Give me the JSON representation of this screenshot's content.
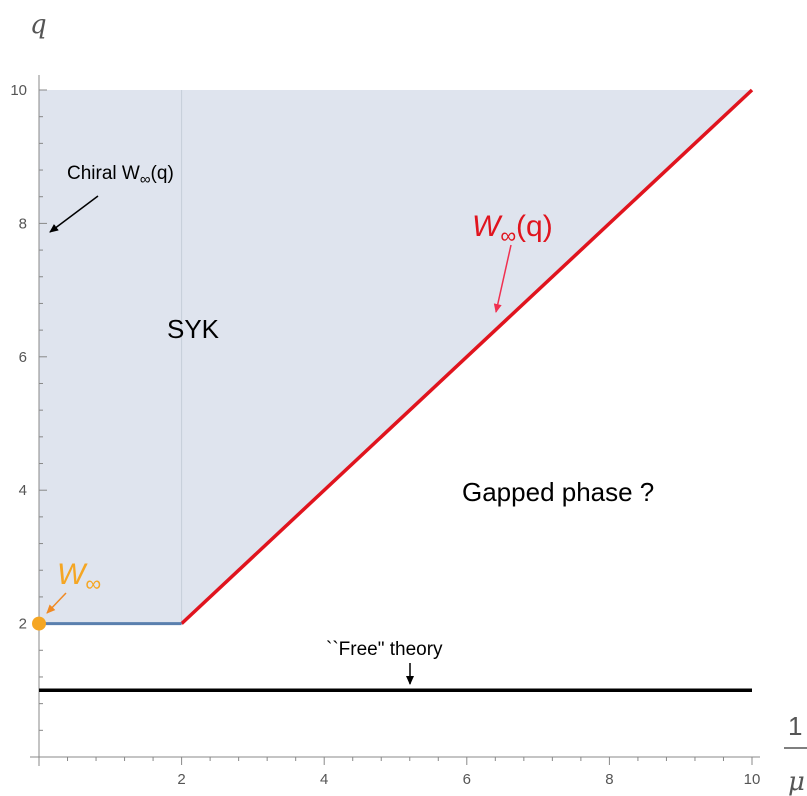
{
  "chart_data": {
    "type": "area",
    "xlabel_numerator": "1",
    "xlabel_denominator": "μ",
    "ylabel": "q",
    "xlim": [
      0,
      10
    ],
    "ylim": [
      0,
      10
    ],
    "x_ticks": [
      2,
      4,
      6,
      8,
      10
    ],
    "y_ticks": [
      2,
      4,
      6,
      8,
      10
    ],
    "x_tick_labels": [
      "2",
      "4",
      "6",
      "8",
      "10"
    ],
    "y_tick_labels": [
      "2",
      "4",
      "6",
      "8",
      "10"
    ],
    "shaded_region": {
      "label": "SYK",
      "color": "#dfe4ee",
      "vertices": [
        [
          0,
          2
        ],
        [
          2,
          2
        ],
        [
          10,
          10
        ],
        [
          0,
          10
        ]
      ]
    },
    "series": [
      {
        "name": "W∞(q)",
        "color": "#e0141e",
        "x": [
          2,
          10
        ],
        "y": [
          2,
          10
        ]
      },
      {
        "color": "#5a7fae",
        "x": [
          0,
          2
        ],
        "y": [
          2,
          2
        ]
      },
      {
        "color": "#000000",
        "x": [
          0,
          10
        ],
        "y": [
          1,
          1
        ]
      }
    ],
    "points": [
      {
        "name": "W∞",
        "x": 0,
        "y": 2,
        "color": "#f5a623"
      }
    ],
    "vertical_guide": {
      "x": 2,
      "color": "#c6cdd9"
    },
    "annotations": [
      {
        "id": "chiral",
        "text_main": "Chiral W",
        "text_sub": "∞",
        "text_tail": "(q)",
        "color": "#000000"
      },
      {
        "id": "winf_q",
        "text_main": "W",
        "text_sub": "∞",
        "text_tail": "(q)",
        "color": "#e0141e"
      },
      {
        "id": "winf",
        "text_main": "W",
        "text_sub": "∞",
        "text_tail": "",
        "color": "#f5a623"
      },
      {
        "id": "gapped",
        "text_main": "Gapped phase ?",
        "color": "#000000"
      },
      {
        "id": "free",
        "text_main": "``Free\"  theory",
        "color": "#000000"
      }
    ]
  }
}
